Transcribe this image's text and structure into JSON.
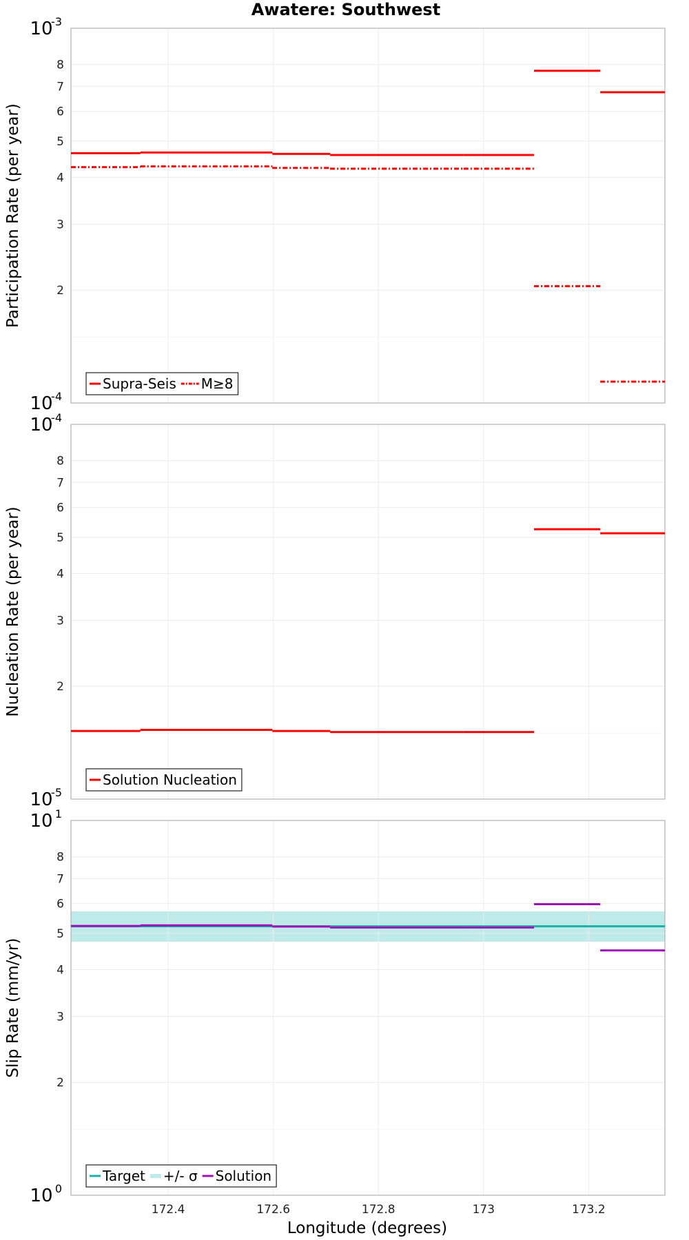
{
  "chart_data": {
    "title": "Awatere: Southwest",
    "xlabel": "Longitude (degrees)",
    "xlim": [
      172.215,
      173.345
    ],
    "xticks": [
      {
        "value": 172.4,
        "label": "172.4"
      },
      {
        "value": 172.6,
        "label": "172.6"
      },
      {
        "value": 172.8,
        "label": "172.8"
      },
      {
        "value": 173.0,
        "label": "173"
      },
      {
        "value": 173.2,
        "label": "173.2"
      }
    ],
    "panels": [
      {
        "type": "line",
        "ylabel": "Participation Rate (per year)",
        "yscale": "log",
        "ylim": [
          0.0001,
          0.001
        ],
        "yminor": [
          {
            "value": 0.0002,
            "label": "2"
          },
          {
            "value": 0.0003,
            "label": "3"
          },
          {
            "value": 0.0004,
            "label": "4"
          },
          {
            "value": 0.0005,
            "label": "5"
          },
          {
            "value": 0.0006,
            "label": "6"
          },
          {
            "value": 0.0007,
            "label": "7"
          },
          {
            "value": 0.0008,
            "label": "8"
          }
        ],
        "ydecades": [
          {
            "value": 0.0001,
            "base": "10",
            "exp": "-4"
          },
          {
            "value": 0.001,
            "base": "10",
            "exp": "-3"
          }
        ],
        "legend": {
          "position": "bottom-left",
          "entries": [
            "Supra-Seis",
            "M≥8"
          ]
        },
        "series": [
          {
            "name": "Supra-Seis",
            "color": "#ff0000",
            "style": "solid",
            "segments": [
              {
                "x0": 172.215,
                "x1": 172.347,
                "y": 0.000464
              },
              {
                "x0": 172.347,
                "x1": 172.598,
                "y": 0.000466
              },
              {
                "x0": 172.598,
                "x1": 172.708,
                "y": 0.000462
              },
              {
                "x0": 172.708,
                "x1": 172.962,
                "y": 0.000459
              },
              {
                "x0": 172.962,
                "x1": 173.096,
                "y": 0.000459
              },
              {
                "x0": 173.096,
                "x1": 173.222,
                "y": 0.00077
              },
              {
                "x0": 173.222,
                "x1": 173.345,
                "y": 0.000675
              }
            ]
          },
          {
            "name": "M≥8",
            "color": "#ff0000",
            "style": "dashdot",
            "segments": [
              {
                "x0": 172.215,
                "x1": 172.347,
                "y": 0.000426
              },
              {
                "x0": 172.347,
                "x1": 172.598,
                "y": 0.000428
              },
              {
                "x0": 172.598,
                "x1": 172.708,
                "y": 0.000424
              },
              {
                "x0": 172.708,
                "x1": 172.962,
                "y": 0.000422
              },
              {
                "x0": 172.962,
                "x1": 173.096,
                "y": 0.000422
              },
              {
                "x0": 173.096,
                "x1": 173.222,
                "y": 0.000205
              },
              {
                "x0": 173.222,
                "x1": 173.345,
                "y": 0.000114
              }
            ]
          }
        ]
      },
      {
        "type": "line",
        "ylabel": "Nucleation Rate (per year)",
        "yscale": "log",
        "ylim": [
          1e-05,
          0.0001
        ],
        "yminor": [
          {
            "value": 2e-05,
            "label": "2"
          },
          {
            "value": 3e-05,
            "label": "3"
          },
          {
            "value": 4e-05,
            "label": "4"
          },
          {
            "value": 5e-05,
            "label": "5"
          },
          {
            "value": 6e-05,
            "label": "6"
          },
          {
            "value": 7e-05,
            "label": "7"
          },
          {
            "value": 8e-05,
            "label": "8"
          }
        ],
        "ydecades": [
          {
            "value": 1e-05,
            "base": "10",
            "exp": "-5"
          },
          {
            "value": 0.0001,
            "base": "10",
            "exp": "-4"
          }
        ],
        "legend": {
          "position": "bottom-left",
          "entries": [
            "Solution Nucleation"
          ]
        },
        "series": [
          {
            "name": "Solution Nucleation",
            "color": "#ff0000",
            "style": "solid",
            "segments": [
              {
                "x0": 172.215,
                "x1": 172.347,
                "y": 1.52e-05
              },
              {
                "x0": 172.347,
                "x1": 172.598,
                "y": 1.53e-05
              },
              {
                "x0": 172.598,
                "x1": 172.708,
                "y": 1.52e-05
              },
              {
                "x0": 172.708,
                "x1": 172.962,
                "y": 1.51e-05
              },
              {
                "x0": 172.962,
                "x1": 173.096,
                "y": 1.51e-05
              },
              {
                "x0": 173.096,
                "x1": 173.222,
                "y": 5.25e-05
              },
              {
                "x0": 173.222,
                "x1": 173.345,
                "y": 5.12e-05
              }
            ]
          }
        ]
      },
      {
        "type": "line",
        "ylabel": "Slip Rate (mm/yr)",
        "yscale": "log",
        "ylim": [
          1,
          10
        ],
        "yminor": [
          {
            "value": 2,
            "label": "2"
          },
          {
            "value": 3,
            "label": "3"
          },
          {
            "value": 4,
            "label": "4"
          },
          {
            "value": 5,
            "label": "5"
          },
          {
            "value": 6,
            "label": "6"
          },
          {
            "value": 7,
            "label": "7"
          },
          {
            "value": 8,
            "label": "8"
          }
        ],
        "ydecades": [
          {
            "value": 1,
            "base": "10",
            "exp": "0"
          },
          {
            "value": 10,
            "base": "10",
            "exp": "1"
          }
        ],
        "legend": {
          "position": "bottom-left",
          "entries": [
            "Target",
            "+/- σ",
            "Solution"
          ]
        },
        "band": {
          "name": "+/- σ",
          "color": "#bfeaea",
          "x0": 172.215,
          "x1": 173.345,
          "y0": 4.75,
          "y1": 5.72
        },
        "series": [
          {
            "name": "Target",
            "color": "#1ab0a8",
            "style": "solid",
            "segments": [
              {
                "x0": 172.215,
                "x1": 173.345,
                "y": 5.22
              }
            ]
          },
          {
            "name": "Solution",
            "color": "#a010b8",
            "style": "solid",
            "segments": [
              {
                "x0": 172.215,
                "x1": 172.347,
                "y": 5.23
              },
              {
                "x0": 172.347,
                "x1": 172.598,
                "y": 5.25
              },
              {
                "x0": 172.598,
                "x1": 172.708,
                "y": 5.21
              },
              {
                "x0": 172.708,
                "x1": 172.962,
                "y": 5.18
              },
              {
                "x0": 172.962,
                "x1": 173.096,
                "y": 5.18
              },
              {
                "x0": 173.096,
                "x1": 173.222,
                "y": 5.98
              },
              {
                "x0": 173.222,
                "x1": 173.345,
                "y": 4.5
              }
            ]
          }
        ]
      }
    ]
  }
}
